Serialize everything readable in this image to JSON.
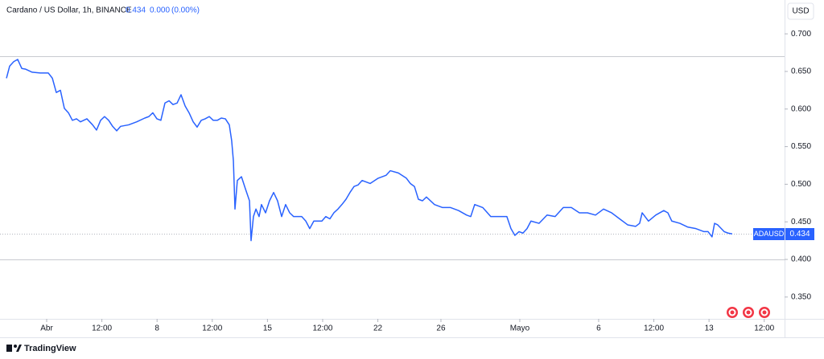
{
  "quote": {
    "change": "0.000",
    "change_percent": "(0.00%)"
  },
  "chart_data": {
    "type": "line",
    "title": "Cardano / US Dollar, 1h, BINANCE",
    "currency": "USD",
    "x": [
      -2.55,
      -2.35,
      -2.09,
      -1.84,
      -1.58,
      -1.33,
      -0.92,
      -0.41,
      0.1,
      0.36,
      0.61,
      0.87,
      1.12,
      1.38,
      1.63,
      1.89,
      2.14,
      2.55,
      2.91,
      3.16,
      3.42,
      3.67,
      3.93,
      4.18,
      4.44,
      4.69,
      5.2,
      5.71,
      6.22,
      6.48,
      6.73,
      6.99,
      7.24,
      7.5,
      7.76,
      8.01,
      8.27,
      8.52,
      8.78,
      9.03,
      9.29,
      9.54,
      9.8,
      10.05,
      10.31,
      10.56,
      10.82,
      11.07,
      11.33,
      11.58,
      11.73,
      11.84,
      11.94,
      12.09,
      12.35,
      12.6,
      12.86,
      12.96,
      13.11,
      13.27,
      13.47,
      13.62,
      13.88,
      14.13,
      14.39,
      14.64,
      14.9,
      15.15,
      15.41,
      15.66,
      16.17,
      16.43,
      16.68,
      16.94,
      17.45,
      17.7,
      17.96,
      18.21,
      18.47,
      18.72,
      18.98,
      19.23,
      19.49,
      19.74,
      20.0,
      20.51,
      21.02,
      21.53,
      21.79,
      22.3,
      22.81,
      23.06,
      23.32,
      23.57,
      23.83,
      24.08,
      24.59,
      25.1,
      25.61,
      26.12,
      26.63,
      26.89,
      27.14,
      27.65,
      28.16,
      28.67,
      29.18,
      29.44,
      29.69,
      29.95,
      30.2,
      30.46,
      30.71,
      31.22,
      31.73,
      32.24,
      32.76,
      33.27,
      33.78,
      34.29,
      34.8,
      35.31,
      35.82,
      36.33,
      36.84,
      37.35,
      37.6,
      37.76,
      38.16,
      38.62,
      39.13,
      39.39,
      39.64,
      40.15,
      40.66,
      41.17,
      41.68,
      41.94,
      42.19,
      42.35,
      42.55,
      42.96,
      43.21,
      43.47
    ],
    "series": [
      {
        "name": "ADAUSD",
        "color": "#2962ff",
        "values": [
          0.641,
          0.657,
          0.663,
          0.666,
          0.654,
          0.653,
          0.649,
          0.648,
          0.648,
          0.641,
          0.622,
          0.625,
          0.601,
          0.595,
          0.585,
          0.587,
          0.583,
          0.587,
          0.579,
          0.572,
          0.585,
          0.59,
          0.585,
          0.577,
          0.571,
          0.577,
          0.579,
          0.583,
          0.588,
          0.59,
          0.595,
          0.587,
          0.585,
          0.608,
          0.611,
          0.606,
          0.608,
          0.619,
          0.604,
          0.595,
          0.583,
          0.576,
          0.585,
          0.587,
          0.59,
          0.585,
          0.585,
          0.588,
          0.587,
          0.579,
          0.558,
          0.531,
          0.467,
          0.505,
          0.51,
          0.494,
          0.478,
          0.425,
          0.457,
          0.467,
          0.457,
          0.473,
          0.462,
          0.478,
          0.489,
          0.478,
          0.457,
          0.473,
          0.462,
          0.457,
          0.457,
          0.451,
          0.441,
          0.451,
          0.451,
          0.457,
          0.454,
          0.462,
          0.467,
          0.473,
          0.48,
          0.489,
          0.497,
          0.499,
          0.505,
          0.501,
          0.508,
          0.512,
          0.518,
          0.515,
          0.508,
          0.501,
          0.497,
          0.48,
          0.478,
          0.483,
          0.473,
          0.469,
          0.469,
          0.465,
          0.459,
          0.457,
          0.473,
          0.469,
          0.457,
          0.457,
          0.457,
          0.441,
          0.432,
          0.437,
          0.435,
          0.441,
          0.451,
          0.448,
          0.459,
          0.457,
          0.469,
          0.469,
          0.462,
          0.462,
          0.459,
          0.467,
          0.462,
          0.454,
          0.446,
          0.444,
          0.448,
          0.462,
          0.451,
          0.459,
          0.465,
          0.462,
          0.451,
          0.448,
          0.443,
          0.441,
          0.437,
          0.437,
          0.43,
          0.448,
          0.446,
          0.437,
          0.435,
          0.434
        ]
      }
    ],
    "xlim": [
      -2.96,
      46.79
    ],
    "xticks": [
      {
        "value": 0,
        "label": "Abr"
      },
      {
        "value": 3.5,
        "label": "12:00"
      },
      {
        "value": 7,
        "label": "8"
      },
      {
        "value": 10.5,
        "label": "12:00"
      },
      {
        "value": 14,
        "label": "15"
      },
      {
        "value": 17.5,
        "label": "12:00"
      },
      {
        "value": 21,
        "label": "22"
      },
      {
        "value": 25,
        "label": "26"
      },
      {
        "value": 30,
        "label": "Mayo"
      },
      {
        "value": 35,
        "label": "6"
      },
      {
        "value": 38.5,
        "label": "12:00"
      },
      {
        "value": 42,
        "label": "13"
      },
      {
        "value": 45.5,
        "label": "12:00"
      }
    ],
    "ylim": [
      0.321,
      0.745
    ],
    "yticks": [
      {
        "value": 0.7,
        "label": "0.700"
      },
      {
        "value": 0.65,
        "label": "0.650"
      },
      {
        "value": 0.6,
        "label": "0.600"
      },
      {
        "value": 0.55,
        "label": "0.550"
      },
      {
        "value": 0.5,
        "label": "0.500"
      },
      {
        "value": 0.45,
        "label": "0.450"
      },
      {
        "value": 0.4,
        "label": "0.400"
      },
      {
        "value": 0.35,
        "label": "0.350"
      }
    ],
    "hlines": [
      0.67,
      0.4
    ]
  },
  "footer": {
    "brand": "TradingView"
  }
}
